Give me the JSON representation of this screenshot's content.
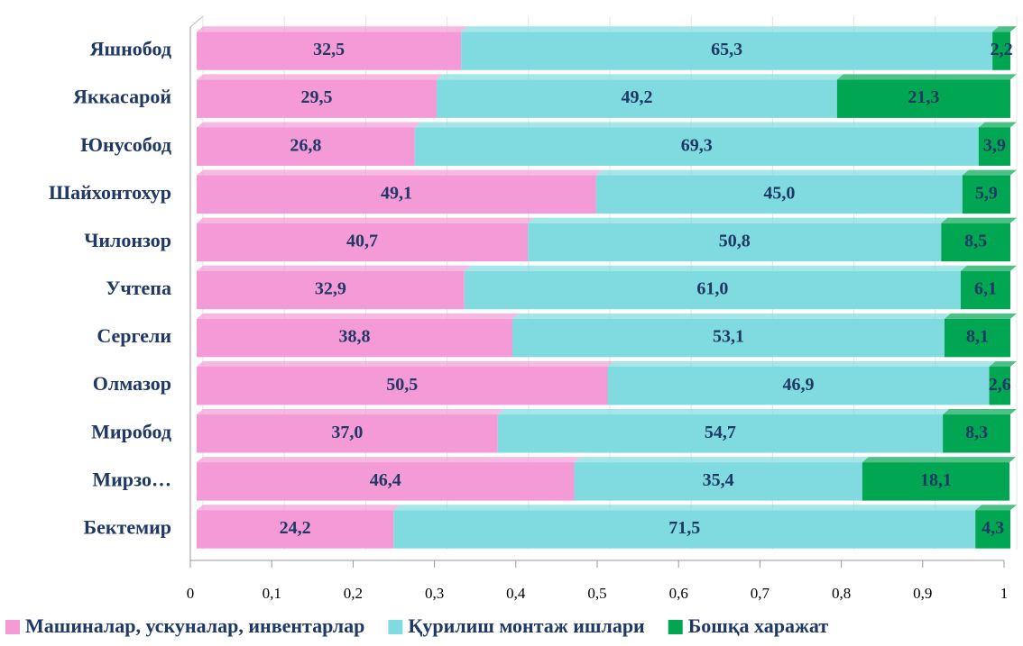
{
  "chart_data": {
    "type": "bar_stacked_horizontal",
    "categories": [
      "Яшнобод",
      "Яккасарой",
      "Юнусобод",
      "Шайхонтохур",
      "Чилонзор",
      "Учтепа",
      "Сергели",
      "Олмазор",
      "Миробод",
      "Мирзо…",
      "Бектемир"
    ],
    "series": [
      {
        "name": "Машиналар, ускуналар, инвентарлар",
        "color": "#f49ad6",
        "values": [
          0.325,
          0.295,
          0.268,
          0.491,
          0.407,
          0.329,
          0.388,
          0.505,
          0.37,
          0.464,
          0.242
        ],
        "value_labels": [
          "32,5",
          "29,5",
          "26,8",
          "49,1",
          "40,7",
          "32,9",
          "38,8",
          "50,5",
          "37,0",
          "46,4",
          "24,2"
        ]
      },
      {
        "name": "Қурилиш монтаж ишлари",
        "color": "#7fdbe0",
        "values": [
          0.653,
          0.492,
          0.693,
          0.45,
          0.508,
          0.61,
          0.531,
          0.469,
          0.547,
          0.354,
          0.715
        ],
        "value_labels": [
          "65,3",
          "49,2",
          "69,3",
          "45,0",
          "50,8",
          "61,0",
          "53,1",
          "46,9",
          "54,7",
          "35,4",
          "71,5"
        ]
      },
      {
        "name": "Бошқа харажат",
        "color": "#00a651",
        "values": [
          0.022,
          0.213,
          0.039,
          0.059,
          0.085,
          0.061,
          0.081,
          0.026,
          0.083,
          0.181,
          0.043
        ],
        "value_labels": [
          "2,2",
          "21,3",
          "3,9",
          "5,9",
          "8,5",
          "6,1",
          "8,1",
          "2,6",
          "8,3",
          "18,1",
          "4,3"
        ]
      }
    ],
    "xlim": [
      0,
      1
    ],
    "xticks": [
      0,
      {
        "value": 0.1,
        "label": "0,1"
      },
      {
        "value": 0.2,
        "label": "0,2"
      },
      {
        "value": 0.3,
        "label": "0,3"
      },
      {
        "value": 0.4,
        "label": "0,4"
      },
      {
        "value": 0.5,
        "label": "0,5"
      },
      {
        "value": 0.6,
        "label": "0,6"
      },
      {
        "value": 0.7,
        "label": "0,7"
      },
      {
        "value": 0.8,
        "label": "0,8"
      },
      {
        "value": 0.9,
        "label": "0,9"
      },
      1
    ],
    "grid": true,
    "legend": "bottom"
  }
}
